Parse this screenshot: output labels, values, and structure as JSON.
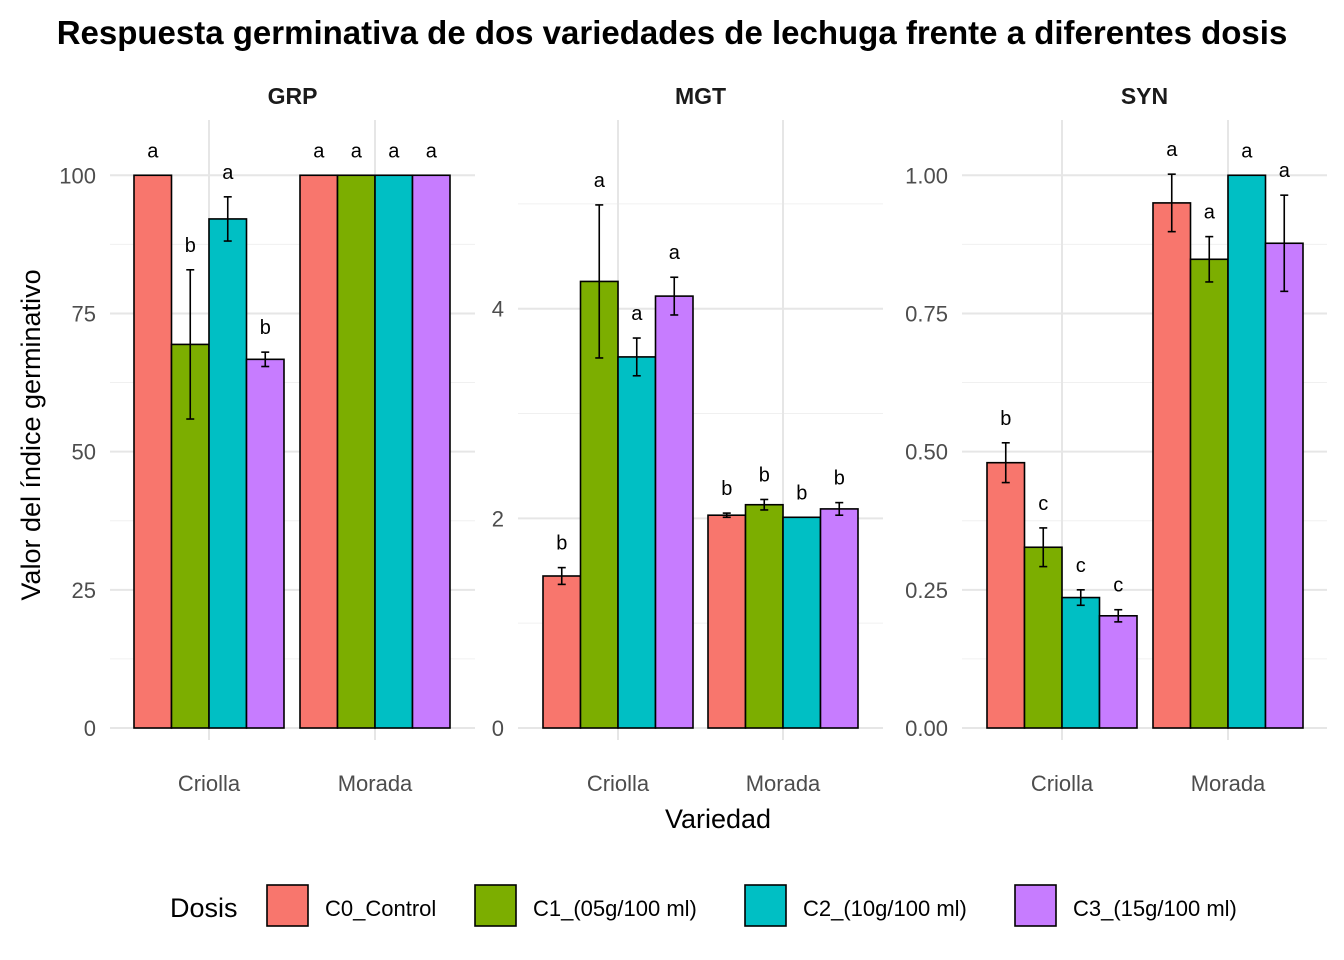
{
  "chart_data": {
    "type": "bar",
    "title": "Respuesta germinativa de dos variedades de lechuga frente a diferentes dosis",
    "xlabel": "Variedad",
    "ylabel": "Valor del índice germinativo",
    "categories": [
      "Criolla",
      "Morada"
    ],
    "legend": {
      "title": "Dosis",
      "position": "bottom",
      "entries": [
        {
          "name": "C0_Control",
          "color": "#F8766D"
        },
        {
          "name": "C1_(05g/100 ml)",
          "color": "#7CAE00"
        },
        {
          "name": "C2_(10g/100 ml)",
          "color": "#00BFC4"
        },
        {
          "name": "C3_(15g/100 ml)",
          "color": "#C77CFF"
        }
      ]
    },
    "grid": true,
    "facets": [
      {
        "name": "GRP",
        "ylim": [
          0,
          110
        ],
        "yticks": [
          0,
          25,
          50,
          75,
          100
        ],
        "ytick_labels": [
          "0",
          "25",
          "50",
          "75",
          "100"
        ],
        "series": [
          {
            "name": "C0_Control",
            "values": [
              100,
              100
            ],
            "errors": [
              0,
              0
            ],
            "letters": [
              "a",
              "a"
            ]
          },
          {
            "name": "C1_(05g/100 ml)",
            "values": [
              69.4,
              100
            ],
            "errors": [
              13.5,
              0
            ],
            "letters": [
              "b",
              "a"
            ]
          },
          {
            "name": "C2_(10g/100 ml)",
            "values": [
              92.1,
              100
            ],
            "errors": [
              4,
              0
            ],
            "letters": [
              "a",
              "a"
            ]
          },
          {
            "name": "C3_(15g/100 ml)",
            "values": [
              66.7,
              100
            ],
            "errors": [
              1.3,
              0
            ],
            "letters": [
              "b",
              "a"
            ]
          }
        ]
      },
      {
        "name": "MGT",
        "ylim": [
          0,
          5.8
        ],
        "yticks": [
          0,
          2,
          4
        ],
        "ytick_labels": [
          "0",
          "2",
          "4"
        ],
        "series": [
          {
            "name": "C0_Control",
            "values": [
              1.45,
              2.03
            ],
            "errors": [
              0.08,
              0.02
            ],
            "letters": [
              "b",
              "b"
            ]
          },
          {
            "name": "C1_(05g/100 ml)",
            "values": [
              4.26,
              2.13
            ],
            "errors": [
              0.73,
              0.05
            ],
            "letters": [
              "a",
              "b"
            ]
          },
          {
            "name": "C2_(10g/100 ml)",
            "values": [
              3.54,
              2.01
            ],
            "errors": [
              0.18,
              0
            ],
            "letters": [
              "a",
              "b"
            ]
          },
          {
            "name": "C3_(15g/100 ml)",
            "values": [
              4.12,
              2.09
            ],
            "errors": [
              0.18,
              0.06
            ],
            "letters": [
              "a",
              "b"
            ]
          }
        ]
      },
      {
        "name": "SYN",
        "ylim": [
          0,
          1.1
        ],
        "yticks": [
          0,
          0.25,
          0.5,
          0.75,
          1.0
        ],
        "ytick_labels": [
          "0.00",
          "0.25",
          "0.50",
          "0.75",
          "1.00"
        ],
        "series": [
          {
            "name": "C0_Control",
            "values": [
              0.48,
              0.95
            ],
            "errors": [
              0.036,
              0.052
            ],
            "letters": [
              "b",
              "a"
            ]
          },
          {
            "name": "C1_(05g/100 ml)",
            "values": [
              0.327,
              0.848
            ],
            "errors": [
              0.035,
              0.041
            ],
            "letters": [
              "c",
              "a"
            ]
          },
          {
            "name": "C2_(10g/100 ml)",
            "values": [
              0.236,
              1.0
            ],
            "errors": [
              0.014,
              0
            ],
            "letters": [
              "c",
              "a"
            ]
          },
          {
            "name": "C3_(15g/100 ml)",
            "values": [
              0.203,
              0.877
            ],
            "errors": [
              0.011,
              0.087
            ],
            "letters": [
              "c",
              "a"
            ]
          }
        ]
      }
    ]
  }
}
